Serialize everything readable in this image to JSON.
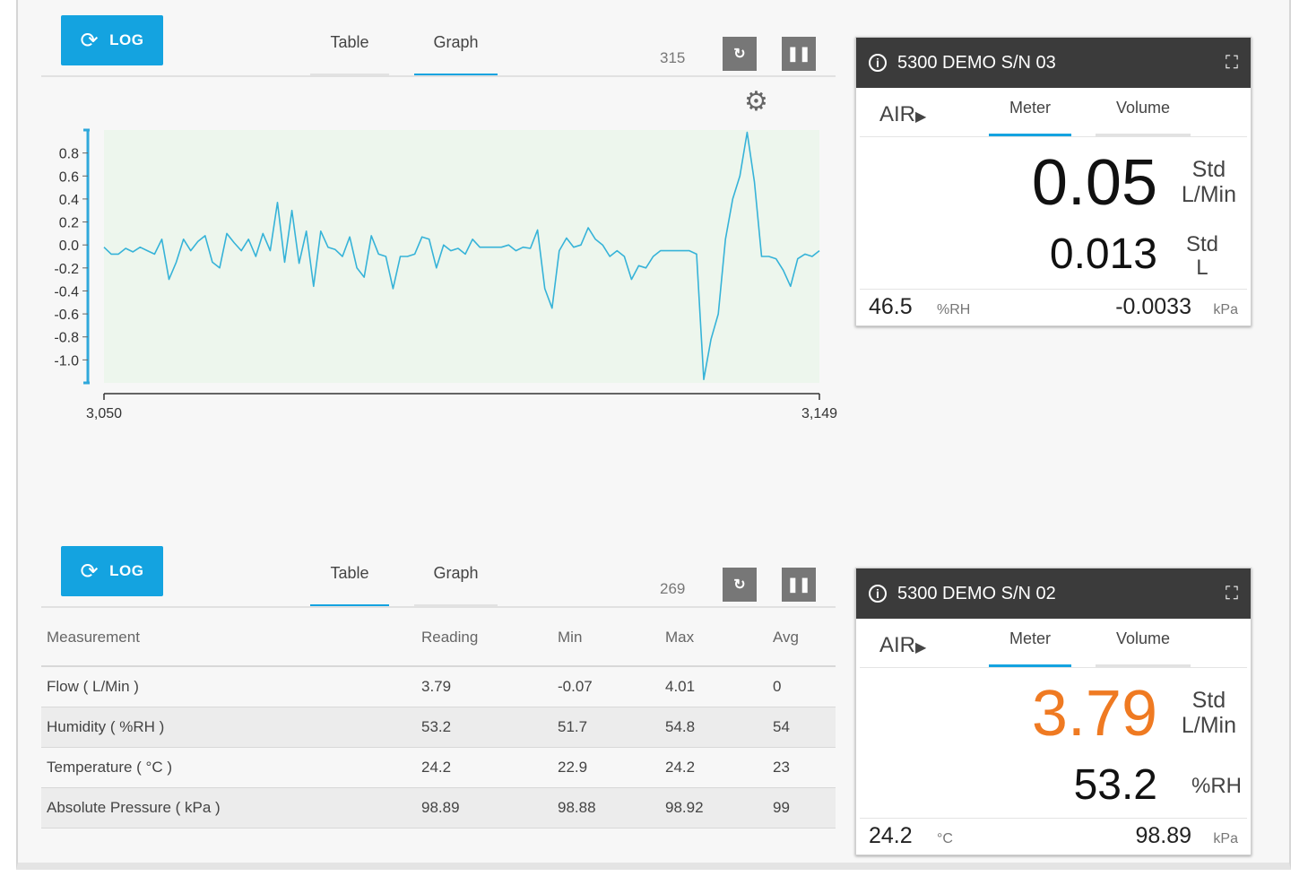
{
  "panel1": {
    "log_label": "LOG",
    "tabs": [
      "Table",
      "Graph"
    ],
    "active_tab": "Graph",
    "count": "315"
  },
  "chart_data": {
    "type": "line",
    "x_range": [
      3050,
      3149
    ],
    "x_tick_labels": [
      "3,050",
      "3,149"
    ],
    "y_ticks": [
      "0.8",
      "0.6",
      "0.4",
      "0.2",
      "0.0",
      "-0.2",
      "-0.4",
      "-0.6",
      "-0.8",
      "-1.0"
    ],
    "ylim": [
      -1.2,
      1.0
    ],
    "series_color": "#36b3d8",
    "plot_background": "#edf6ed",
    "y": [
      -0.02,
      -0.08,
      -0.08,
      -0.03,
      -0.06,
      -0.02,
      -0.05,
      -0.08,
      0.05,
      -0.3,
      -0.15,
      0.05,
      -0.05,
      0.03,
      0.08,
      -0.15,
      -0.2,
      0.1,
      0.02,
      -0.05,
      0.05,
      -0.1,
      0.1,
      -0.05,
      0.37,
      -0.15,
      0.3,
      -0.16,
      0.12,
      -0.36,
      0.12,
      -0.02,
      -0.04,
      -0.1,
      0.07,
      -0.2,
      -0.28,
      0.08,
      -0.08,
      -0.1,
      -0.38,
      -0.1,
      -0.1,
      -0.08,
      0.07,
      0.05,
      -0.2,
      0.0,
      -0.05,
      -0.03,
      -0.08,
      0.05,
      -0.02,
      -0.02,
      -0.02,
      -0.02,
      0.0,
      -0.05,
      -0.02,
      -0.03,
      0.13,
      -0.38,
      -0.55,
      -0.05,
      0.06,
      -0.02,
      0.0,
      0.15,
      0.05,
      0.0,
      -0.1,
      -0.05,
      -0.1,
      -0.3,
      -0.18,
      -0.2,
      -0.1,
      -0.05,
      -0.05,
      -0.05,
      -0.05,
      -0.05,
      -0.08,
      -1.17,
      -0.82,
      -0.6,
      0.05,
      0.4,
      0.6,
      0.98,
      0.55,
      -0.1,
      -0.1,
      -0.12,
      -0.22,
      -0.36,
      -0.12,
      -0.08,
      -0.1,
      -0.05
    ]
  },
  "panel2": {
    "log_label": "LOG",
    "tabs": [
      "Table",
      "Graph"
    ],
    "active_tab": "Table",
    "count": "269",
    "table": {
      "headers": [
        "Measurement",
        "Reading",
        "Min",
        "Max",
        "Avg"
      ],
      "rows": [
        [
          "Flow ( L/Min )",
          "3.79",
          "-0.07",
          "4.01",
          "0"
        ],
        [
          "Humidity ( %RH )",
          "53.2",
          "51.7",
          "54.8",
          "54"
        ],
        [
          "Temperature ( °C )",
          "24.2",
          "22.9",
          "24.2",
          "23"
        ],
        [
          "Absolute Pressure ( kPa )",
          "98.89",
          "98.88",
          "98.92",
          "99"
        ]
      ]
    }
  },
  "card1": {
    "title": "5300 DEMO S/N 03",
    "air_label": "AIR",
    "tabs": [
      "Meter",
      "Volume"
    ],
    "big_value": "0.05",
    "big_unit_line1": "Std",
    "big_unit_line2": "L/Min",
    "big_color": "#111111",
    "mid_value": "0.013",
    "mid_unit_line1": "Std",
    "mid_unit_line2": "L",
    "foot_left_value": "46.5",
    "foot_left_unit": "%RH",
    "foot_right_value": "-0.0033",
    "foot_right_unit": "kPa"
  },
  "card2": {
    "title": "5300 DEMO S/N 02",
    "air_label": "AIR",
    "tabs": [
      "Meter",
      "Volume"
    ],
    "big_value": "3.79",
    "big_unit_line1": "Std",
    "big_unit_line2": "L/Min",
    "big_color": "#ef7a22",
    "mid_value": "53.2",
    "mid_unit_line1": "%RH",
    "foot_left_value": "24.2",
    "foot_left_unit": "°C",
    "foot_right_value": "98.89",
    "foot_right_unit": "kPa"
  }
}
